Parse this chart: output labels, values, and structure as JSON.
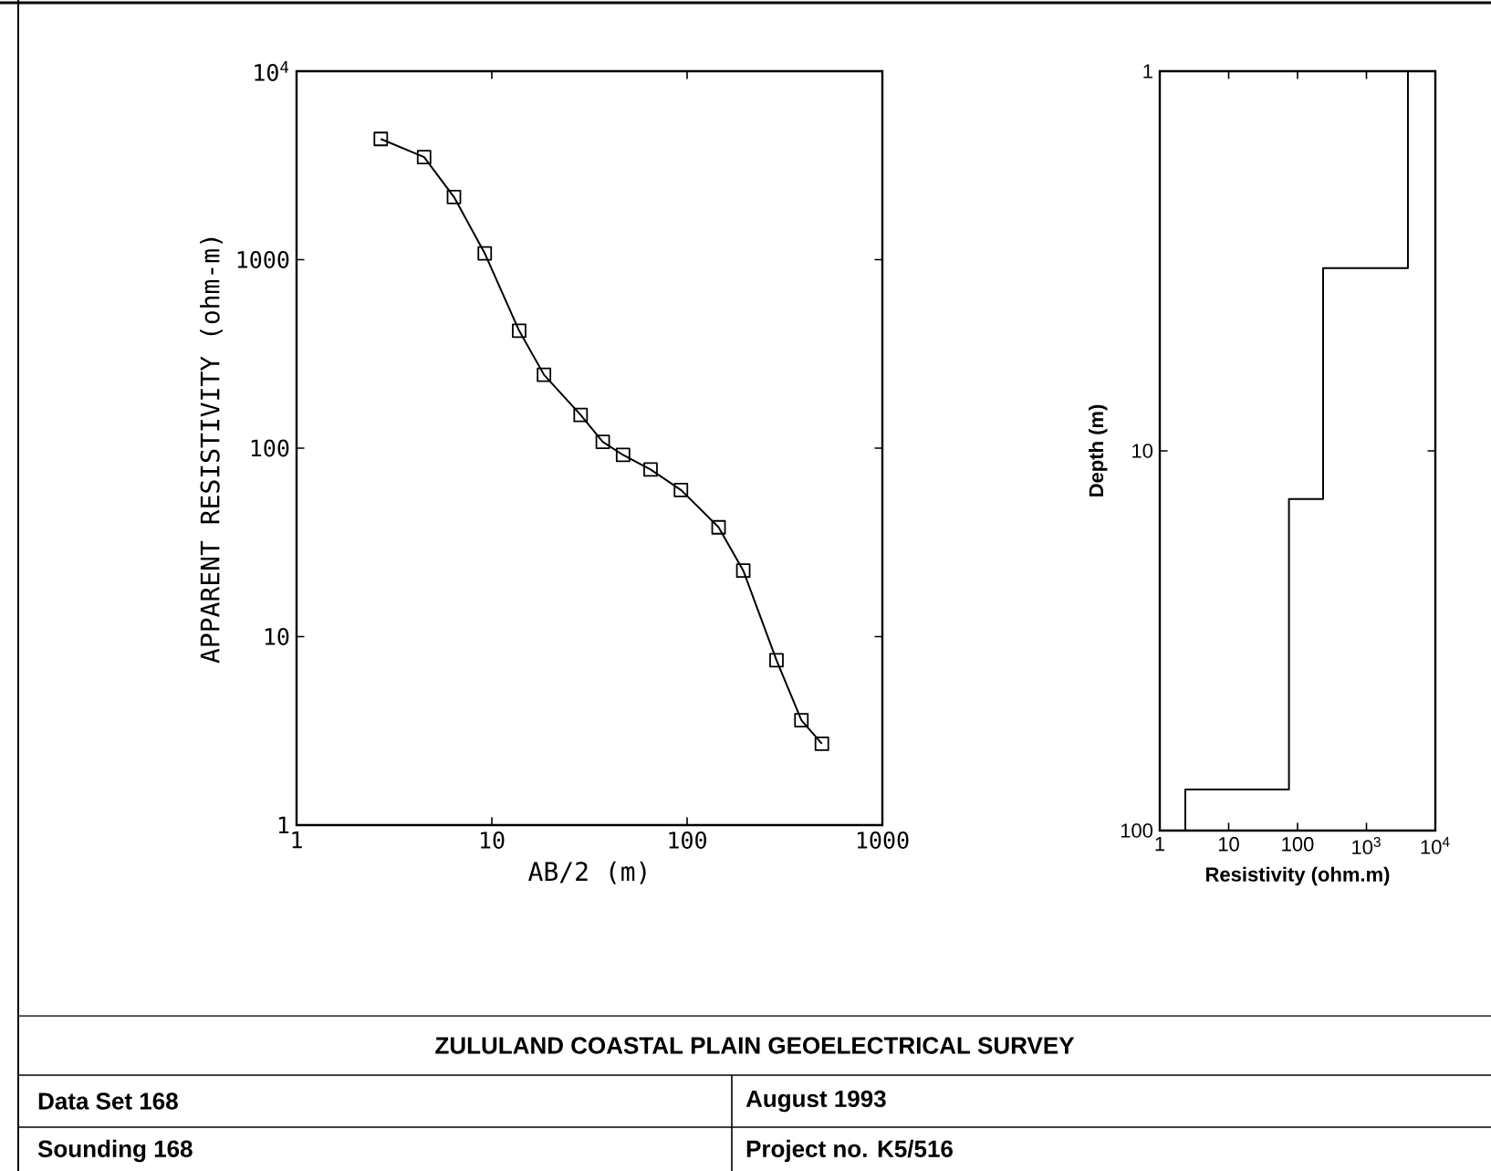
{
  "chart_data": [
    {
      "type": "line",
      "title": "ZULULAND COASTAL PLAIN GEOELECTRICAL SURVEY",
      "annotations": [
        "Data Set 168",
        "August 1993",
        "Sounding 168",
        "Project no.  K5/516"
      ],
      "xlabel": "AB/2 (m)",
      "ylabel": "APPARENT RESISTIVITY (ohm-m)",
      "log": "xy",
      "x": [
        2.7,
        4.5,
        6.4,
        9.2,
        13.8,
        18.5,
        28.5,
        37,
        47,
        65,
        93,
        145,
        194,
        287,
        385,
        490
      ],
      "values": [
        4370,
        3500,
        2150,
        1080,
        420,
        245,
        150,
        108,
        92,
        77,
        60,
        38,
        22.4,
        7.5,
        3.6,
        2.7
      ],
      "color": "#000000",
      "marker": "square",
      "line_style": "solid",
      "xlim": [
        1,
        1000
      ],
      "ylim": [
        1,
        10000
      ],
      "xticks": [
        1,
        10,
        100,
        1000
      ],
      "yticks": [
        1,
        10,
        100,
        1000,
        {
          "value": 10000,
          "label": "10$^{4}$"
        }
      ]
    },
    {
      "type": "line",
      "xlabel": "Resistivity (ohm.m)",
      "ylabel": "Depth (m)",
      "log": "xy",
      "x": [
        4000,
        4000,
        235,
        235,
        75,
        75,
        2.35,
        2.35
      ],
      "values": [
        1,
        3.3,
        3.3,
        13.4,
        13.4,
        78,
        78,
        100
      ],
      "color": "#000000",
      "marker": "none",
      "line_style": "solid",
      "xlim": [
        1,
        10000
      ],
      "ylim": [
        100,
        1
      ],
      "xticks": [
        1,
        10,
        100,
        {
          "value": 1000,
          "label": "10$^{3}$"
        },
        {
          "value": 10000,
          "label": "10$^{4}$"
        }
      ],
      "yticks": [
        1,
        10,
        100
      ]
    }
  ]
}
